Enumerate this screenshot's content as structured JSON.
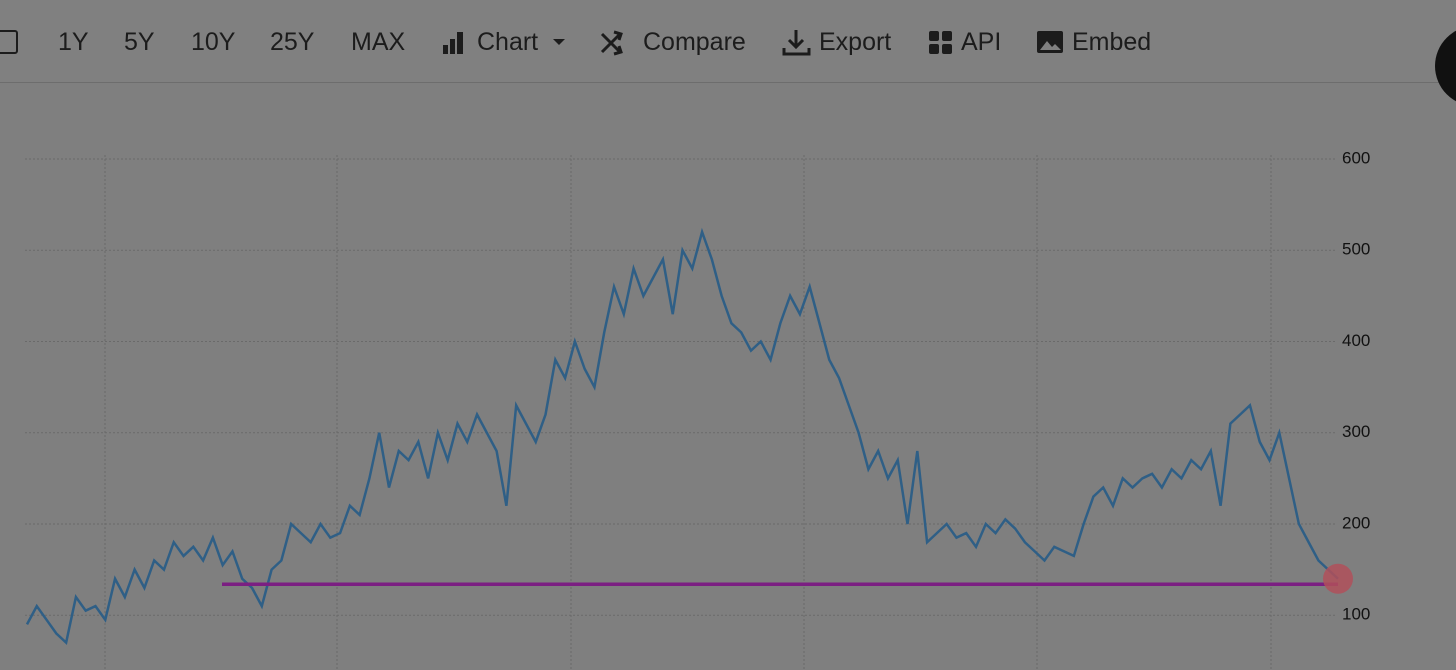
{
  "toolbar": {
    "buttons": [
      "1Y",
      "5Y",
      "10Y",
      "25Y",
      "MAX",
      "Chart",
      "Compare",
      "Export",
      "API",
      "Embed"
    ]
  },
  "chart_data": {
    "type": "line",
    "ylim": [
      40,
      640
    ],
    "yticks": [
      100,
      200,
      300,
      400,
      500,
      600
    ],
    "grid": true,
    "series": [
      {
        "color": "#2f5f86",
        "values": [
          90,
          110,
          95,
          80,
          70,
          120,
          105,
          110,
          95,
          140,
          120,
          150,
          130,
          160,
          150,
          180,
          165,
          175,
          160,
          185,
          155,
          170,
          140,
          130,
          110,
          150,
          160,
          200,
          190,
          180,
          200,
          185,
          190,
          220,
          210,
          250,
          300,
          240,
          280,
          270,
          290,
          250,
          300,
          270,
          310,
          290,
          320,
          300,
          280,
          220,
          330,
          310,
          290,
          320,
          380,
          360,
          400,
          370,
          350,
          410,
          460,
          430,
          480,
          450,
          470,
          490,
          430,
          500,
          480,
          520,
          490,
          450,
          420,
          410,
          390,
          400,
          380,
          420,
          450,
          430,
          460,
          420,
          380,
          360,
          330,
          300,
          260,
          280,
          250,
          270,
          200,
          280,
          180,
          190,
          200,
          185,
          190,
          175,
          200,
          190,
          205,
          195,
          180,
          170,
          160,
          175,
          170,
          165,
          200,
          230,
          240,
          220,
          250,
          240,
          250,
          255,
          240,
          260,
          250,
          270,
          260,
          280,
          220,
          310,
          320,
          330,
          290,
          270,
          300,
          250,
          200,
          180,
          160,
          150,
          140
        ]
      }
    ],
    "reference_line": {
      "value": 134,
      "color": "#7b1f82"
    }
  }
}
